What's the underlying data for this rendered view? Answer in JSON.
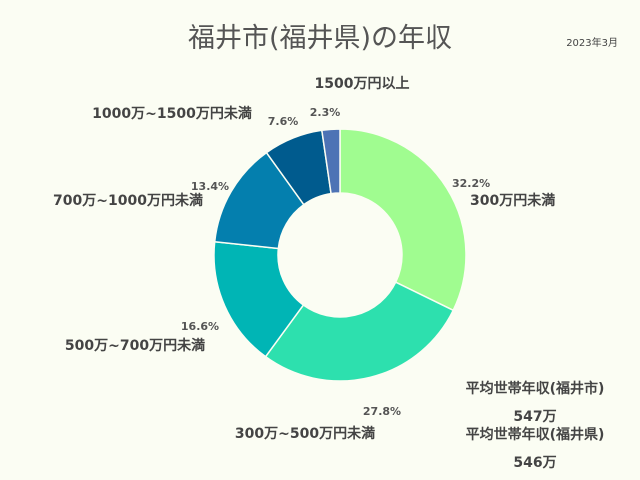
{
  "title": "福井市(福井県)の年収",
  "date": "2023年3月",
  "averages": [
    {
      "label": "平均世帯年収(福井市)",
      "value": "547万"
    },
    {
      "label": "平均世帯年収(福井県)",
      "value": "546万"
    }
  ],
  "chart_data": {
    "type": "pie",
    "donut": true,
    "categories": [
      "300万円未満",
      "300万~500万円未満",
      "500万~700万円未満",
      "700万~1000万円未満",
      "1000万~1500万円未満",
      "1500万円以上"
    ],
    "values": [
      32.2,
      27.8,
      16.6,
      13.4,
      7.6,
      2.3
    ],
    "value_labels": [
      "32.2%",
      "27.8%",
      "16.6%",
      "13.4%",
      "7.6%",
      "2.3%"
    ],
    "colors": [
      "#a0fc90",
      "#2de0ae",
      "#00b5b5",
      "#047fae",
      "#005b8e",
      "#4d73b5"
    ],
    "start": "top",
    "direction": "clockwise"
  }
}
